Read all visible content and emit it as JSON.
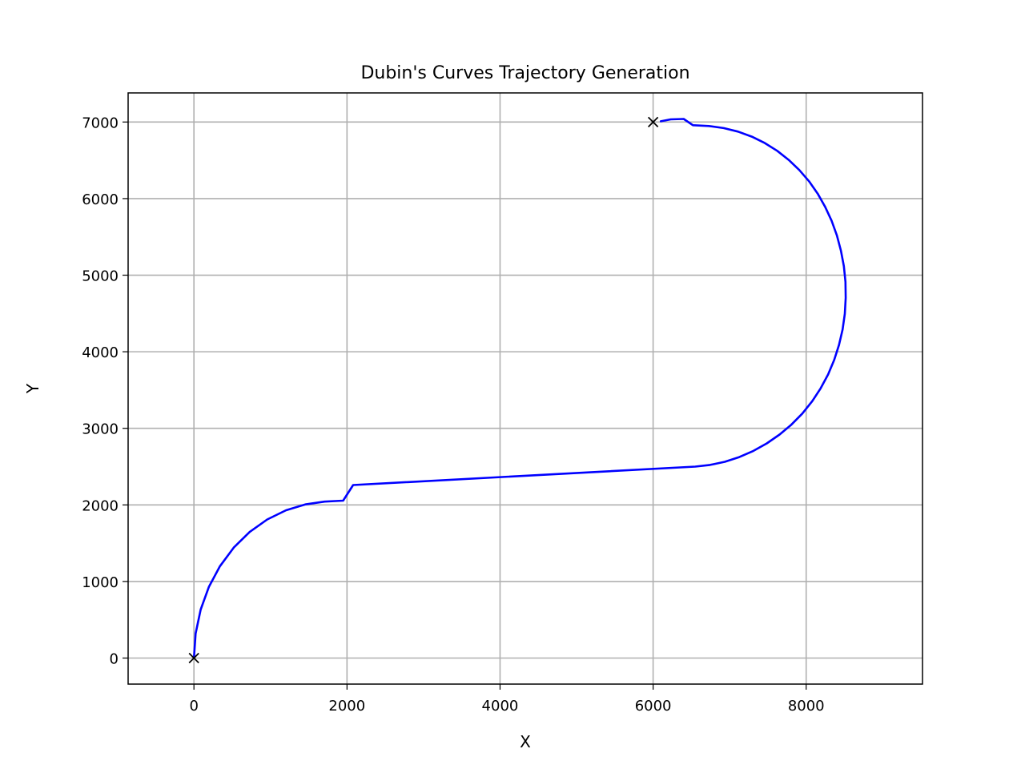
{
  "chart_data": {
    "type": "line",
    "title": "Dubin's Curves Trajectory Generation",
    "xlabel": "X",
    "ylabel": "Y",
    "xlim": [
      -860,
      9520
    ],
    "ylim": [
      -340,
      7380
    ],
    "xticks": [
      0,
      2000,
      4000,
      6000,
      8000
    ],
    "yticks": [
      0,
      1000,
      2000,
      3000,
      4000,
      5000,
      6000,
      7000
    ],
    "grid": true,
    "legend": "none",
    "series": [
      {
        "color": "#0000ff",
        "x": [
          0,
          22,
          88,
          195,
          340,
          520,
          728,
          958,
          1203,
          1455,
          1707,
          1950,
          2080,
          6550,
          6743,
          6936,
          7126,
          7310,
          7486,
          7652,
          7807,
          7949,
          8077,
          8189,
          8286,
          8366,
          8429,
          8476,
          8505,
          8517,
          8513,
          8492,
          8454,
          8401,
          8332,
          8248,
          8150,
          8037,
          7911,
          7772,
          7622,
          7460,
          7290,
          7110,
          6922,
          6728,
          6520,
          6400,
          6230,
          6100
        ],
        "y": [
          0,
          321,
          633,
          928,
          1200,
          1442,
          1646,
          1810,
          1930,
          2006,
          2043,
          2055,
          2260,
          2500,
          2522,
          2563,
          2625,
          2705,
          2803,
          2918,
          3048,
          3193,
          3352,
          3522,
          3703,
          3892,
          4088,
          4290,
          4496,
          4704,
          4912,
          5118,
          5321,
          5519,
          5710,
          5893,
          6065,
          6226,
          6373,
          6506,
          6624,
          6725,
          6809,
          6875,
          6921,
          6948,
          6958,
          7040,
          7035,
          7010
        ]
      }
    ],
    "markers": [
      {
        "x": 0,
        "y": 0,
        "symbol": "x"
      },
      {
        "x": 6000,
        "y": 7000,
        "symbol": "x"
      }
    ]
  }
}
